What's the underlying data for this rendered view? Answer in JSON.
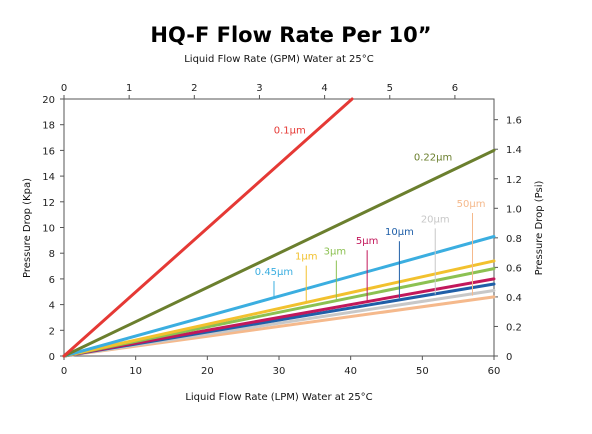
{
  "chart_data": {
    "type": "line",
    "title": "HQ-F Flow Rate Per 10”",
    "xlabel": "Liquid  Flow Rate  (LPM)  Water at 25°C",
    "x2label": "Liquid  Flow Rate  (GPM)  Water at 25°C",
    "ylabel": "Pressure  Drop  (Kpa)",
    "y2label": "Pressure  Drop  (Psi)",
    "xlim": [
      0,
      60
    ],
    "ylim": [
      0,
      20
    ],
    "x2lim": [
      0,
      6.6
    ],
    "y2lim": [
      0,
      1.74
    ],
    "xticks": [
      0,
      10,
      20,
      30,
      40,
      50,
      60
    ],
    "yticks": [
      0,
      2,
      4,
      6,
      8,
      10,
      12,
      14,
      16,
      18,
      20
    ],
    "x2ticks": [
      0,
      1,
      2,
      3,
      4,
      5,
      6
    ],
    "y2ticks": [
      0,
      0.2,
      0.4,
      0.6,
      0.8,
      1.0,
      1.2,
      1.4,
      1.6
    ],
    "x2ticklabels": [
      "0",
      "1",
      "2",
      "3",
      "4",
      "5",
      "6"
    ],
    "y2ticklabels": [
      "0",
      "0.2",
      "0.4",
      "0.6",
      "0.8",
      "1.0",
      "1.2",
      "1.4",
      "1.6"
    ],
    "grid": false,
    "series": [
      {
        "name": "0.1μm",
        "color": "#e53935",
        "x": [
          0,
          40.2
        ],
        "y": [
          0,
          20.0
        ]
      },
      {
        "name": "0.22μm",
        "color": "#6b7f2e",
        "x": [
          0,
          60
        ],
        "y": [
          0,
          16.0
        ]
      },
      {
        "name": "0.45μm",
        "color": "#3baee0",
        "x": [
          0,
          60
        ],
        "y": [
          0,
          9.3
        ]
      },
      {
        "name": "1μm",
        "color": "#f2c12e",
        "x": [
          0,
          60
        ],
        "y": [
          0,
          7.4
        ]
      },
      {
        "name": "3μm",
        "color": "#8cc152",
        "x": [
          0,
          60
        ],
        "y": [
          0,
          6.8
        ]
      },
      {
        "name": "5μm",
        "color": "#c2185b",
        "x": [
          0,
          60
        ],
        "y": [
          0,
          6.0
        ]
      },
      {
        "name": "10μm",
        "color": "#1f5fa8",
        "x": [
          0,
          60
        ],
        "y": [
          0,
          5.6
        ]
      },
      {
        "name": "20μm",
        "color": "#c8c8c8",
        "x": [
          0,
          60
        ],
        "y": [
          0,
          5.1
        ]
      },
      {
        "name": "50μm",
        "color": "#f5b98c",
        "x": [
          0,
          60
        ],
        "y": [
          0,
          4.6
        ]
      }
    ],
    "annotations": [
      {
        "text": "0.1μm",
        "color": "#e53935",
        "x": 31.5,
        "y": 17.3,
        "arrow": false
      },
      {
        "text": "0.22μm",
        "color": "#6b7f2e",
        "x": 51.5,
        "y": 15.2,
        "arrow": false
      },
      {
        "text": "0.45μm",
        "color": "#3baee0",
        "x": 29.3,
        "y": 6.3,
        "arrow": true,
        "ax": 29.3,
        "ay": 4.5
      },
      {
        "text": "1μm",
        "color": "#f2c12e",
        "x": 33.8,
        "y": 7.5,
        "arrow": true,
        "ax": 33.8,
        "ay": 4.2
      },
      {
        "text": "3μm",
        "color": "#8cc152",
        "x": 37.8,
        "y": 7.9,
        "arrow": true,
        "ax": 38.0,
        "ay": 4.3
      },
      {
        "text": "5μm",
        "color": "#c2185b",
        "x": 42.3,
        "y": 8.7,
        "arrow": true,
        "ax": 42.3,
        "ay": 4.3
      },
      {
        "text": "10μm",
        "color": "#1f5fa8",
        "x": 46.8,
        "y": 9.4,
        "arrow": true,
        "ax": 46.8,
        "ay": 4.5
      },
      {
        "text": "20μm",
        "color": "#c8c8c8",
        "x": 51.8,
        "y": 10.4,
        "arrow": true,
        "ax": 51.8,
        "ay": 4.8
      },
      {
        "text": "50μm",
        "color": "#f5b98c",
        "x": 56.8,
        "y": 11.6,
        "arrow": true,
        "ax": 57.0,
        "ay": 4.7
      }
    ]
  }
}
